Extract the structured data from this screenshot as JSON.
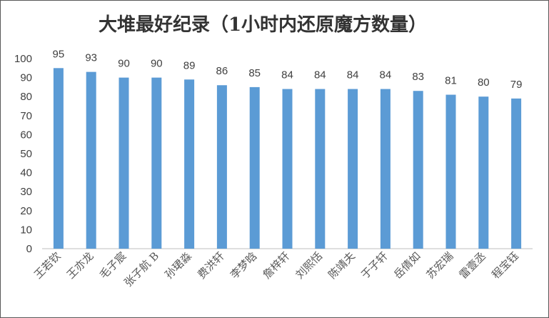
{
  "chart_data": {
    "type": "bar",
    "title": "大堆最好纪录（1小时内还原魔方数量）",
    "categories": [
      "王若钦",
      "王亦龙",
      "毛子宸",
      "张子航 B",
      "孙珺淼",
      "费洪轩",
      "李梦晗",
      "詹梓轩",
      "刘熙恬",
      "陈靖夫",
      "于子轩",
      "岳倩如",
      "苏宏瑞",
      "雷壹丞",
      "程宝钰"
    ],
    "values": [
      95,
      93,
      90,
      90,
      89,
      86,
      85,
      84,
      84,
      84,
      84,
      83,
      81,
      80,
      79
    ],
    "ylim": [
      0,
      100
    ],
    "yticks": [
      0,
      10,
      20,
      30,
      40,
      50,
      60,
      70,
      80,
      90,
      100
    ],
    "xlabel": "",
    "ylabel": "",
    "grid": false,
    "data_labels": true,
    "bar_color": "#5b9bd5"
  }
}
